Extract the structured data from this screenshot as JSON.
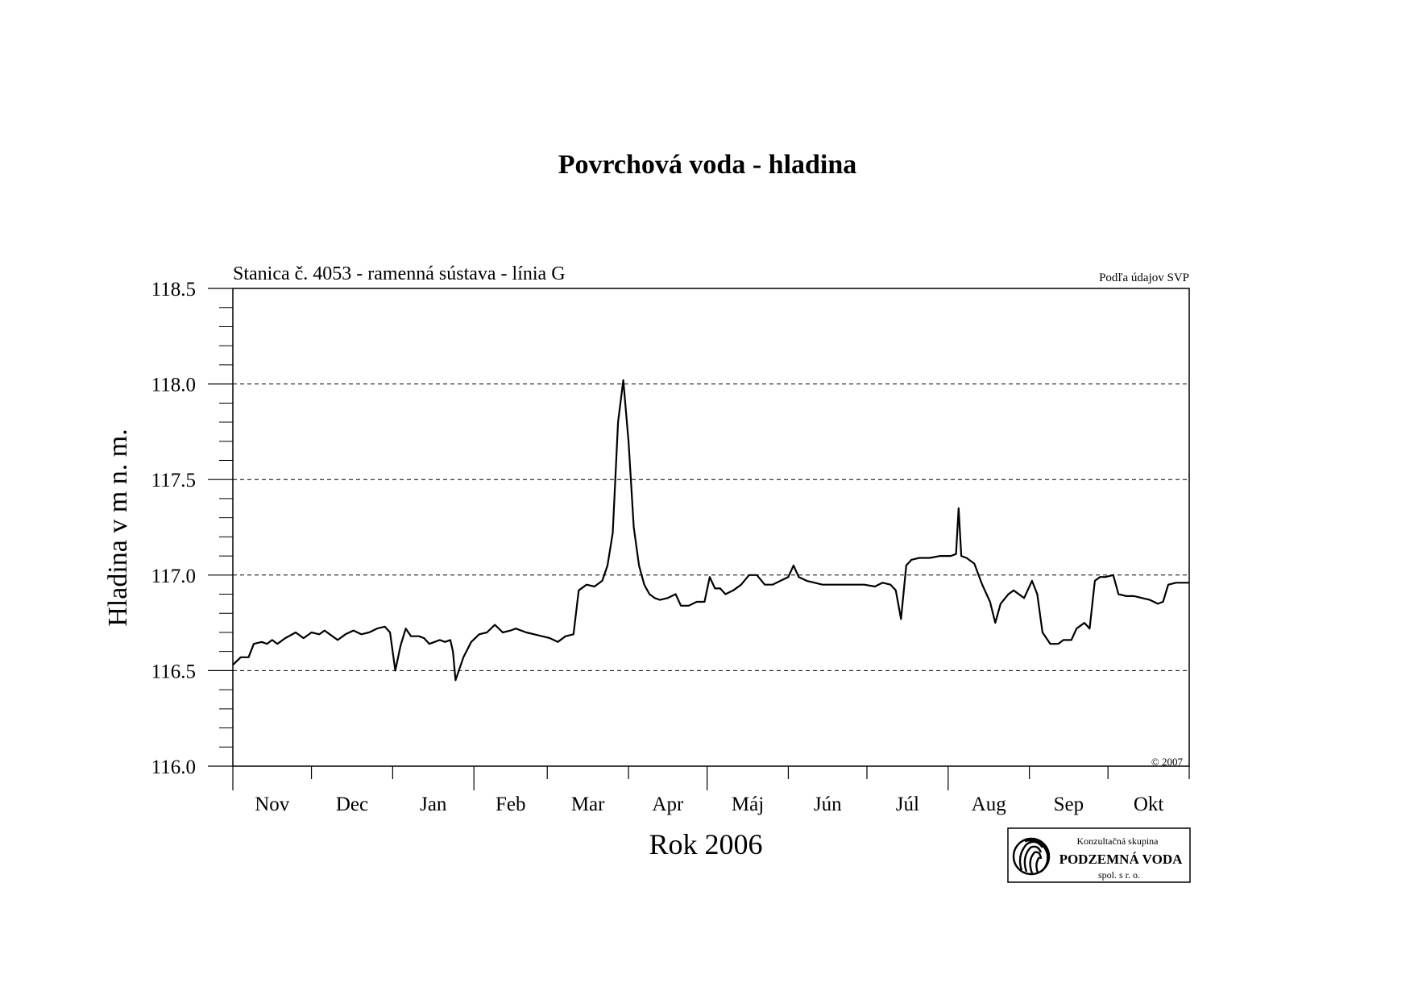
{
  "chart_data": {
    "type": "line",
    "title": "Povrchová voda - hladina",
    "subtitle": "Stanica č. 4053 - ramenná sústava - línia G",
    "source_note": "Podľa údajov SVP",
    "copyright": "© 2007",
    "xlabel": "Rok 2006",
    "ylabel": "Hladina v m n. m.",
    "ylim": [
      116.0,
      118.5
    ],
    "y_ticks": [
      "116.0",
      "116.5",
      "117.0",
      "117.5",
      "118.0",
      "118.5"
    ],
    "grid": "horizontal dashed",
    "months": [
      "Nov",
      "Dec",
      "Jan",
      "Feb",
      "Mar",
      "Apr",
      "Máj",
      "Jún",
      "Júl",
      "Aug",
      "Sep",
      "Okt"
    ],
    "month_days": [
      30,
      31,
      31,
      28,
      31,
      30,
      31,
      30,
      31,
      31,
      30,
      31
    ],
    "x_unit": "day of hydrological year (from 1 Nov)",
    "series": [
      {
        "color": "#000000",
        "points": [
          [
            0,
            116.53
          ],
          [
            3,
            116.57
          ],
          [
            6,
            116.57
          ],
          [
            8,
            116.64
          ],
          [
            11,
            116.65
          ],
          [
            13,
            116.64
          ],
          [
            15,
            116.66
          ],
          [
            17,
            116.64
          ],
          [
            20,
            116.67
          ],
          [
            24,
            116.7
          ],
          [
            27,
            116.67
          ],
          [
            30,
            116.7
          ],
          [
            33,
            116.69
          ],
          [
            35,
            116.71
          ],
          [
            38,
            116.68
          ],
          [
            40,
            116.66
          ],
          [
            43,
            116.69
          ],
          [
            46,
            116.71
          ],
          [
            49,
            116.69
          ],
          [
            52,
            116.7
          ],
          [
            55,
            116.72
          ],
          [
            58,
            116.73
          ],
          [
            60,
            116.7
          ],
          [
            62,
            116.5
          ],
          [
            64,
            116.63
          ],
          [
            66,
            116.72
          ],
          [
            68,
            116.68
          ],
          [
            71,
            116.68
          ],
          [
            73,
            116.67
          ],
          [
            75,
            116.64
          ],
          [
            79,
            116.66
          ],
          [
            81,
            116.65
          ],
          [
            83,
            116.66
          ],
          [
            84,
            116.6
          ],
          [
            85,
            116.45
          ],
          [
            88,
            116.57
          ],
          [
            91,
            116.65
          ],
          [
            94,
            116.69
          ],
          [
            97,
            116.7
          ],
          [
            100,
            116.74
          ],
          [
            103,
            116.7
          ],
          [
            106,
            116.71
          ],
          [
            108,
            116.72
          ],
          [
            112,
            116.7
          ],
          [
            115,
            116.69
          ],
          [
            118,
            116.68
          ],
          [
            121,
            116.67
          ],
          [
            124,
            116.65
          ],
          [
            127,
            116.68
          ],
          [
            130,
            116.69
          ],
          [
            132,
            116.92
          ],
          [
            135,
            116.95
          ],
          [
            138,
            116.94
          ],
          [
            141,
            116.97
          ],
          [
            143,
            117.05
          ],
          [
            145,
            117.22
          ],
          [
            147,
            117.8
          ],
          [
            149,
            118.02
          ],
          [
            151,
            117.7
          ],
          [
            153,
            117.25
          ],
          [
            155,
            117.05
          ],
          [
            157,
            116.95
          ],
          [
            159,
            116.9
          ],
          [
            161,
            116.88
          ],
          [
            163,
            116.87
          ],
          [
            166,
            116.88
          ],
          [
            169,
            116.9
          ],
          [
            171,
            116.84
          ],
          [
            174,
            116.84
          ],
          [
            177,
            116.86
          ],
          [
            180,
            116.86
          ],
          [
            182,
            116.99
          ],
          [
            184,
            116.93
          ],
          [
            186,
            116.93
          ],
          [
            188,
            116.9
          ],
          [
            191,
            116.92
          ],
          [
            194,
            116.95
          ],
          [
            197,
            117.0
          ],
          [
            200,
            117.0
          ],
          [
            203,
            116.95
          ],
          [
            206,
            116.95
          ],
          [
            209,
            116.97
          ],
          [
            212,
            116.99
          ],
          [
            214,
            117.05
          ],
          [
            216,
            116.99
          ],
          [
            219,
            116.97
          ],
          [
            222,
            116.96
          ],
          [
            225,
            116.95
          ],
          [
            229,
            116.95
          ],
          [
            233,
            116.95
          ],
          [
            237,
            116.95
          ],
          [
            241,
            116.95
          ],
          [
            245,
            116.94
          ],
          [
            248,
            116.96
          ],
          [
            251,
            116.95
          ],
          [
            253,
            116.92
          ],
          [
            255,
            116.77
          ],
          [
            257,
            117.05
          ],
          [
            259,
            117.08
          ],
          [
            262,
            117.09
          ],
          [
            266,
            117.09
          ],
          [
            270,
            117.1
          ],
          [
            274,
            117.1
          ],
          [
            276,
            117.11
          ],
          [
            277,
            117.35
          ],
          [
            278,
            117.1
          ],
          [
            280,
            117.09
          ],
          [
            283,
            117.06
          ],
          [
            286,
            116.95
          ],
          [
            289,
            116.86
          ],
          [
            291,
            116.75
          ],
          [
            293,
            116.85
          ],
          [
            296,
            116.9
          ],
          [
            298,
            116.92
          ],
          [
            302,
            116.88
          ],
          [
            305,
            116.97
          ],
          [
            307,
            116.9
          ],
          [
            309,
            116.7
          ],
          [
            312,
            116.64
          ],
          [
            315,
            116.64
          ],
          [
            317,
            116.66
          ],
          [
            320,
            116.66
          ],
          [
            322,
            116.72
          ],
          [
            325,
            116.75
          ],
          [
            327,
            116.72
          ],
          [
            329,
            116.97
          ],
          [
            331,
            116.99
          ],
          [
            333,
            116.99
          ],
          [
            336,
            117.0
          ],
          [
            338,
            116.9
          ],
          [
            341,
            116.89
          ],
          [
            344,
            116.89
          ],
          [
            347,
            116.88
          ],
          [
            350,
            116.87
          ],
          [
            353,
            116.85
          ],
          [
            355,
            116.86
          ],
          [
            357,
            116.95
          ],
          [
            360,
            116.96
          ],
          [
            365,
            116.96
          ]
        ]
      }
    ]
  },
  "logo": {
    "line1": "Konzultačná skupina",
    "line2": "PODZEMNÁ VODA",
    "line3": "spol. s r. o."
  }
}
